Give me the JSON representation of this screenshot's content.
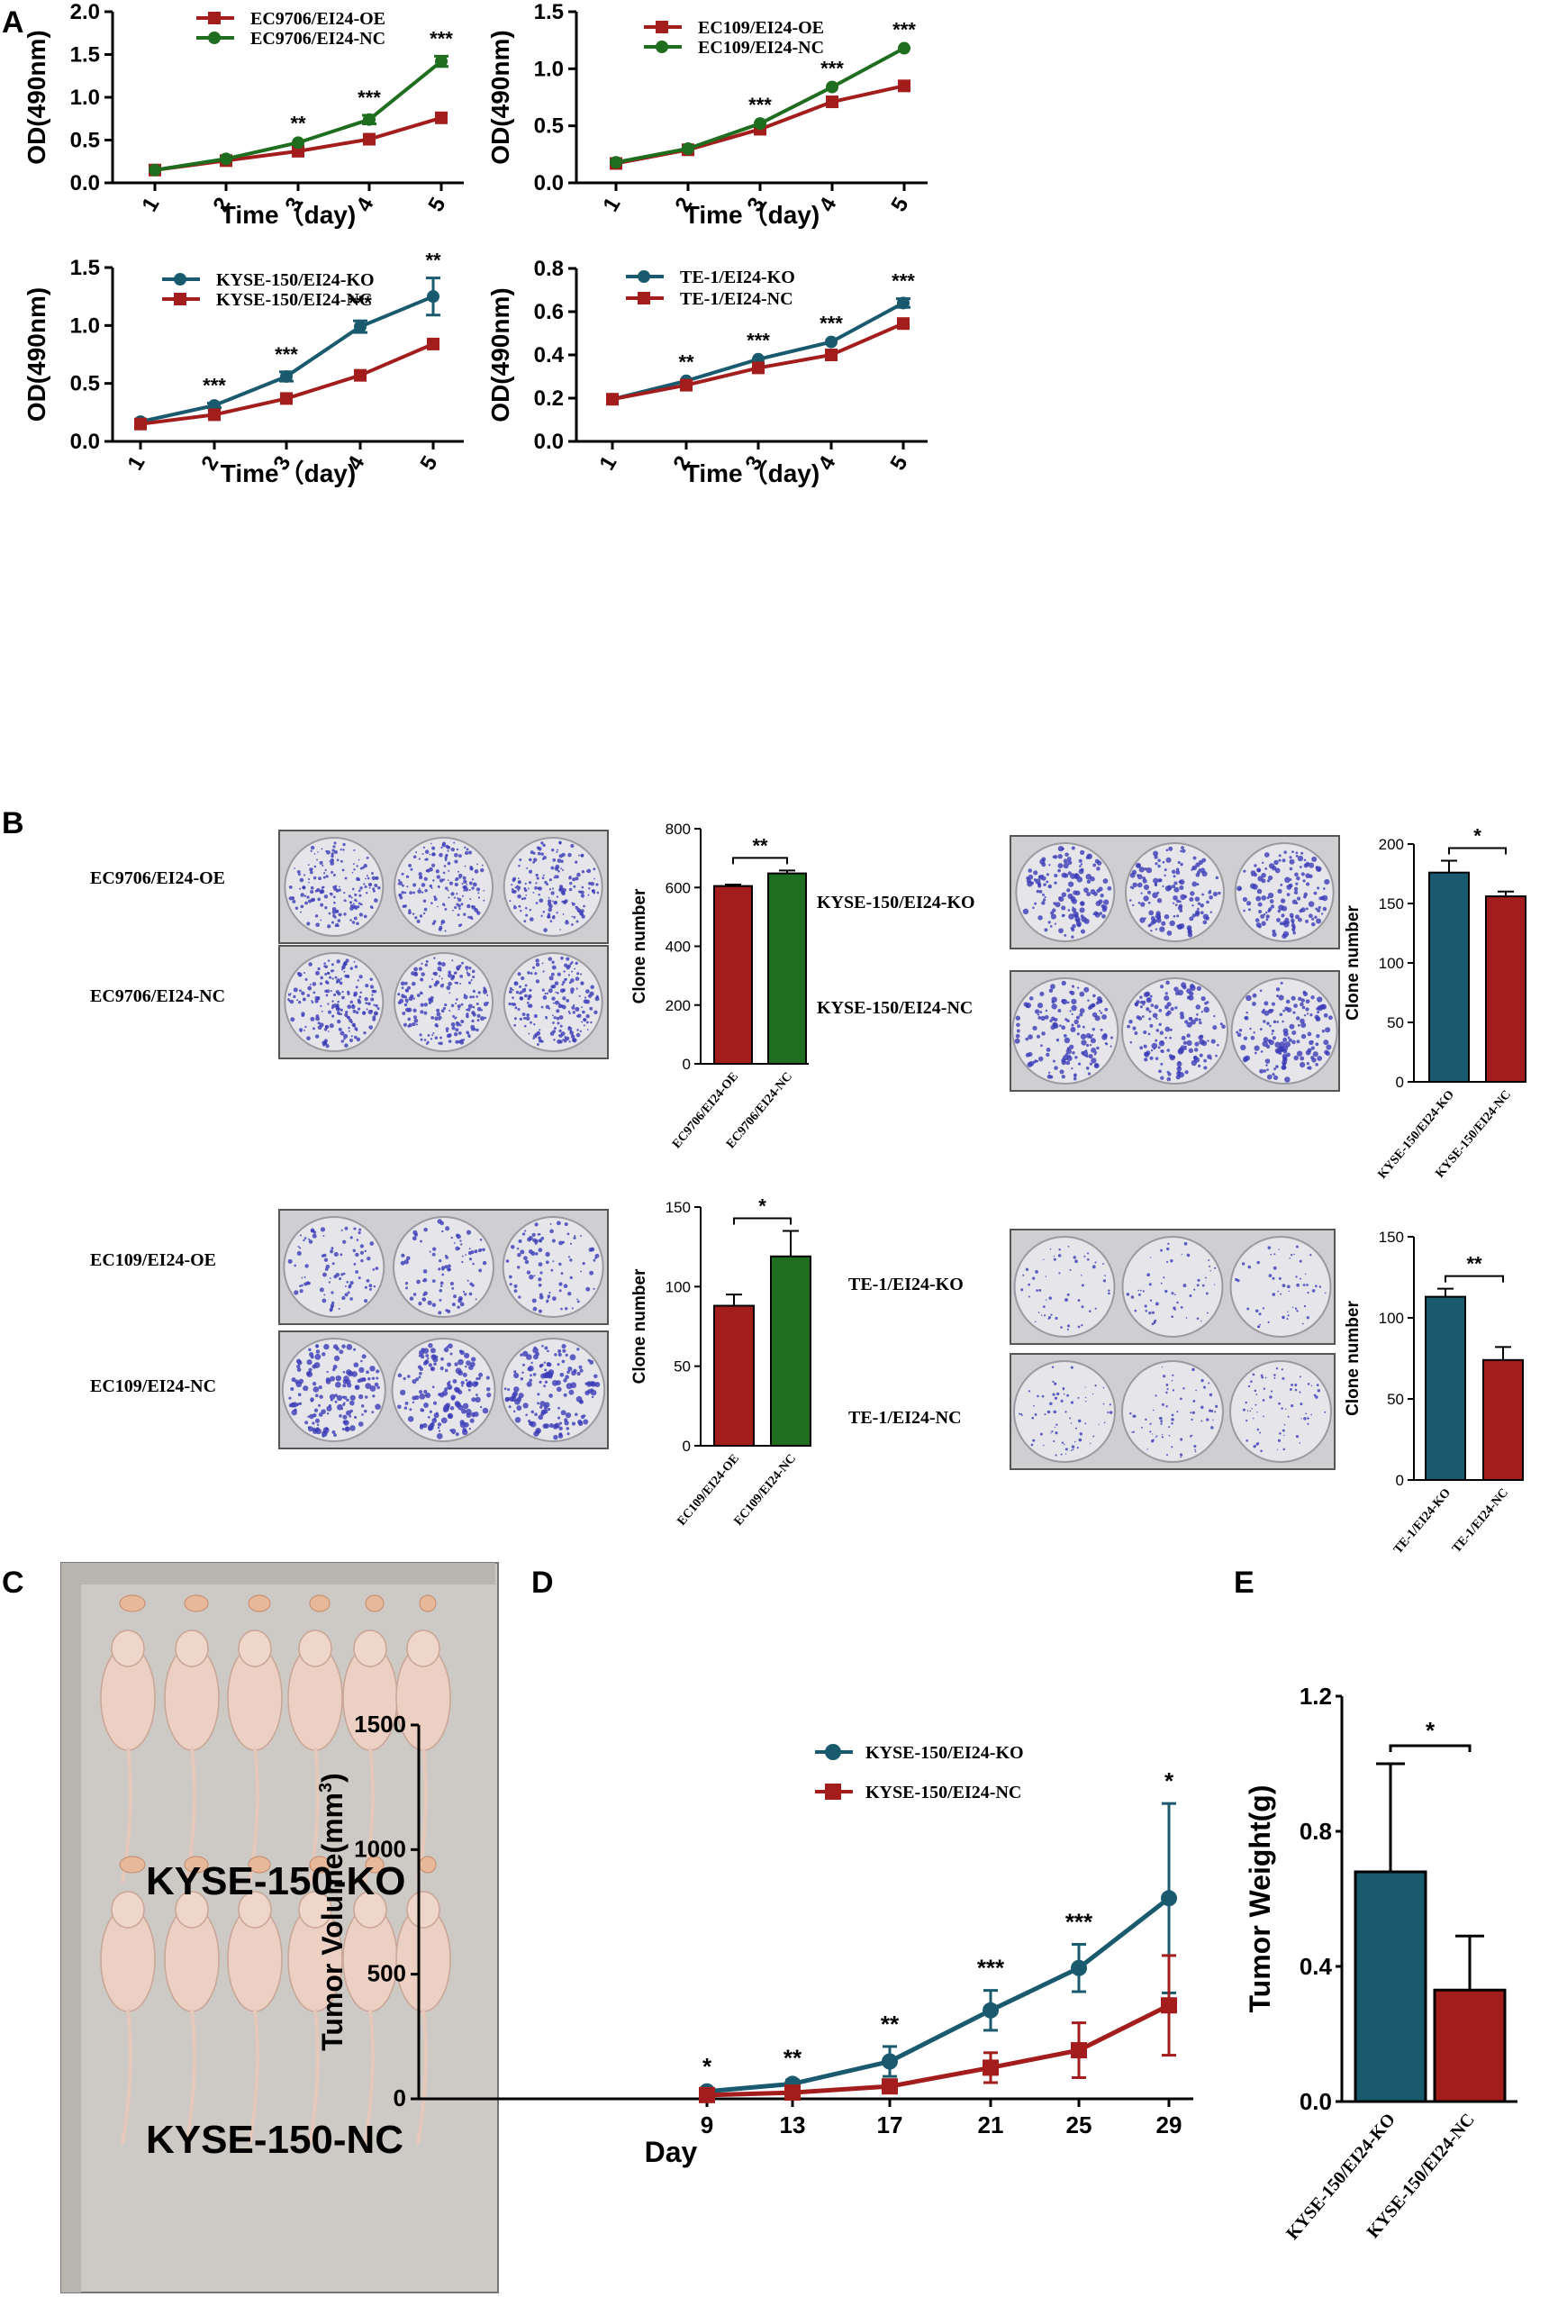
{
  "panels": [
    "A",
    "B",
    "C",
    "D",
    "E"
  ],
  "colors": {
    "red": "#a31d1d",
    "green": "#1f6e1f",
    "teal": "#1a5a6e",
    "plate": "#d6d6d6",
    "dots": "#3b3bb8"
  },
  "chart_data": [
    {
      "id": "A1",
      "type": "line",
      "panel": "A",
      "x": [
        1,
        2,
        3,
        4,
        5
      ],
      "xlabel": "Time（day)",
      "ylabel": "OD(490nm)",
      "ylim": [
        0,
        2.0
      ],
      "yticks": [
        "0.0",
        "0.5",
        "1.0",
        "1.5",
        "2.0"
      ],
      "series": [
        {
          "name": "EC9706/EI24-OE",
          "color": "#a31d1d",
          "marker": "square",
          "values": [
            0.15,
            0.26,
            0.37,
            0.51,
            0.76
          ],
          "err": [
            0.01,
            0.01,
            0.02,
            0.02,
            0.02
          ]
        },
        {
          "name": "EC9706/EI24-NC",
          "color": "#1f6e1f",
          "marker": "circle",
          "values": [
            0.15,
            0.28,
            0.47,
            0.74,
            1.42
          ],
          "err": [
            0.01,
            0.01,
            0.02,
            0.05,
            0.06
          ]
        }
      ],
      "sig": [
        "",
        "",
        "**",
        "***",
        "***"
      ]
    },
    {
      "id": "A2",
      "type": "line",
      "panel": "A",
      "x": [
        1,
        2,
        3,
        4,
        5
      ],
      "xlabel": "Time（day)",
      "ylabel": "OD(490nm)",
      "ylim": [
        0,
        1.5
      ],
      "yticks": [
        "0.0",
        "0.5",
        "1.0",
        "1.5"
      ],
      "series": [
        {
          "name": "EC109/EI24-OE",
          "color": "#a31d1d",
          "marker": "square",
          "values": [
            0.17,
            0.29,
            0.47,
            0.71,
            0.85
          ],
          "err": [
            0.01,
            0.01,
            0.01,
            0.01,
            0.01
          ]
        },
        {
          "name": "EC109/EI24-NC",
          "color": "#1f6e1f",
          "marker": "circle",
          "values": [
            0.18,
            0.3,
            0.52,
            0.84,
            1.18
          ],
          "err": [
            0.01,
            0.01,
            0.01,
            0.01,
            0.01
          ]
        }
      ],
      "sig": [
        "",
        "",
        "***",
        "***",
        "***"
      ]
    },
    {
      "id": "A3",
      "type": "line",
      "panel": "A",
      "x": [
        1,
        2,
        3,
        4,
        5
      ],
      "xlabel": "Time（day)",
      "ylabel": "OD(490nm)",
      "ylim": [
        0,
        1.5
      ],
      "yticks": [
        "0.0",
        "0.5",
        "1.0",
        "1.5"
      ],
      "series": [
        {
          "name": "KYSE-150/EI24-KO",
          "color": "#1a5a6e",
          "marker": "circle",
          "values": [
            0.17,
            0.31,
            0.56,
            0.99,
            1.25
          ],
          "err": [
            0.01,
            0.02,
            0.04,
            0.05,
            0.16
          ]
        },
        {
          "name": "KYSE-150/EI24-NC",
          "color": "#a31d1d",
          "marker": "square",
          "values": [
            0.15,
            0.23,
            0.37,
            0.57,
            0.84
          ],
          "err": [
            0.01,
            0.01,
            0.01,
            0.01,
            0.01
          ]
        }
      ],
      "sig": [
        "",
        "***",
        "***",
        "***",
        "**"
      ]
    },
    {
      "id": "A4",
      "type": "line",
      "panel": "A",
      "x": [
        1,
        2,
        3,
        4,
        5
      ],
      "xlabel": "Time（day)",
      "ylabel": "OD(490nm)",
      "ylim": [
        0,
        0.8
      ],
      "yticks": [
        "0.0",
        "0.2",
        "0.4",
        "0.6",
        "0.8"
      ],
      "series": [
        {
          "name": "TE-1/EI24-KO",
          "color": "#1a5a6e",
          "marker": "circle",
          "values": [
            0.195,
            0.28,
            0.38,
            0.46,
            0.64
          ],
          "err": [
            0.005,
            0.005,
            0.005,
            0.005,
            0.02
          ]
        },
        {
          "name": "TE-1/EI24-NC",
          "color": "#a31d1d",
          "marker": "square",
          "values": [
            0.195,
            0.26,
            0.34,
            0.4,
            0.545
          ],
          "err": [
            0.005,
            0.005,
            0.005,
            0.005,
            0.008
          ]
        }
      ],
      "sig": [
        "",
        "**",
        "***",
        "***",
        "***"
      ]
    },
    {
      "id": "B1",
      "type": "bar",
      "panel": "B",
      "ylabel": "Clone number",
      "ylim": [
        0,
        800
      ],
      "yticks": [
        "0",
        "200",
        "400",
        "600",
        "800"
      ],
      "categories": [
        "EC9706/EI24-OE",
        "EC9706/EI24-NC"
      ],
      "values": [
        605,
        648
      ],
      "err": [
        5,
        10
      ],
      "colors": [
        "#a31d1d",
        "#1f6e1f"
      ],
      "sig": "**"
    },
    {
      "id": "B2",
      "type": "bar",
      "panel": "B",
      "ylabel": "Clone number",
      "ylim": [
        0,
        200
      ],
      "yticks": [
        "0",
        "50",
        "100",
        "150",
        "200"
      ],
      "categories": [
        "KYSE-150/EI24-KO",
        "KYSE-150/EI24-NC"
      ],
      "values": [
        176,
        156
      ],
      "err": [
        10,
        4
      ],
      "colors": [
        "#1a5a6e",
        "#a31d1d"
      ],
      "sig": "*"
    },
    {
      "id": "B3",
      "type": "bar",
      "panel": "B",
      "ylabel": "Clone number",
      "ylim": [
        0,
        150
      ],
      "yticks": [
        "0",
        "50",
        "100",
        "150"
      ],
      "categories": [
        "EC109/EI24-OE",
        "EC109/EI24-NC"
      ],
      "values": [
        88,
        119
      ],
      "err": [
        7,
        16
      ],
      "colors": [
        "#a31d1d",
        "#1f6e1f"
      ],
      "sig": "*"
    },
    {
      "id": "B4",
      "type": "bar",
      "panel": "B",
      "ylabel": "Clone number",
      "ylim": [
        0,
        150
      ],
      "yticks": [
        "0",
        "50",
        "100",
        "150"
      ],
      "categories": [
        "TE-1/EI24-KO",
        "TE-1/EI24-NC"
      ],
      "values": [
        113,
        74
      ],
      "err": [
        5,
        8
      ],
      "colors": [
        "#1a5a6e",
        "#a31d1d"
      ],
      "sig": "**"
    },
    {
      "id": "D",
      "type": "line",
      "panel": "D",
      "x": [
        9,
        13,
        17,
        21,
        25,
        29
      ],
      "xlabel": "Day",
      "ylabel": "Tumor Volume(mm3)",
      "ylim": [
        0,
        1500
      ],
      "yticks": [
        "0",
        "500",
        "1000",
        "1500"
      ],
      "series": [
        {
          "name": "KYSE-150/EI24-KO",
          "color": "#1a5a6e",
          "marker": "circle",
          "values": [
            30,
            60,
            150,
            355,
            525,
            805
          ],
          "err": [
            10,
            15,
            60,
            80,
            95,
            380
          ]
        },
        {
          "name": "KYSE-150/EI24-NC",
          "color": "#a31d1d",
          "marker": "square",
          "values": [
            15,
            25,
            50,
            125,
            195,
            375
          ],
          "err": [
            5,
            8,
            20,
            60,
            110,
            200
          ]
        }
      ],
      "sig": [
        "*",
        "**",
        "**",
        "***",
        "***",
        "*"
      ]
    },
    {
      "id": "E",
      "type": "bar",
      "panel": "E",
      "ylabel": "Tumor Weight(g)",
      "ylim": [
        0,
        1.2
      ],
      "yticks": [
        "0.0",
        "0.4",
        "0.8",
        "1.2"
      ],
      "categories": [
        "KYSE-150/EI24-KO",
        "KYSE-150/EI24-NC"
      ],
      "values": [
        0.68,
        0.33
      ],
      "err": [
        0.32,
        0.16
      ],
      "colors": [
        "#1a5a6e",
        "#a31d1d"
      ],
      "sig": "*"
    }
  ],
  "plates": {
    "B1": {
      "top": "EC9706/EI24-OE",
      "bottom": "EC9706/EI24-NC"
    },
    "B2": {
      "top": "KYSE-150/EI24-KO",
      "bottom": "KYSE-150/EI24-NC"
    },
    "B3": {
      "top": "EC109/EI24-OE",
      "bottom": "EC109/EI24-NC"
    },
    "B4": {
      "top": "TE-1/EI24-KO",
      "bottom": "TE-1/EI24-NC"
    }
  },
  "mice": {
    "top_label": "KYSE-150-KO",
    "bottom_label": "KYSE-150-NC"
  }
}
